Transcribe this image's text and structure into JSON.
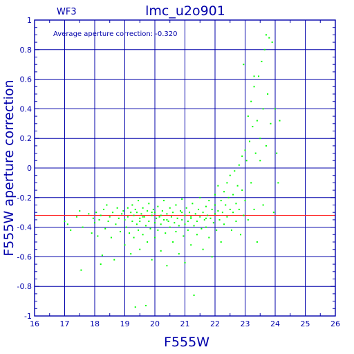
{
  "chart_data": {
    "type": "scatter",
    "title": "lmc_u2o901",
    "chip_label": "WF3",
    "annotation": "Average aperture correction: -0.320",
    "xlabel": "F555W",
    "ylabel": "F555W aperture correction",
    "xlim": [
      16,
      26
    ],
    "ylim": [
      -1,
      1
    ],
    "x_ticks": [
      "16",
      "17",
      "18",
      "19",
      "20",
      "21",
      "22",
      "23",
      "24",
      "25",
      "26"
    ],
    "y_ticks": [
      "-1",
      "-0.8",
      "-0.6",
      "-0.4",
      "-0.2",
      "0",
      "0.2",
      "0.4",
      "0.6",
      "0.8",
      "1"
    ],
    "x_minor_step": 0.5,
    "y_minor_step": 0.05,
    "grid": true,
    "reference_line": {
      "y": -0.32,
      "color": "#ff2020"
    },
    "point_color": "#00ff00",
    "axis_color": "#0000aa",
    "points": [
      [
        17.0,
        -0.36
      ],
      [
        17.1,
        -0.38
      ],
      [
        17.2,
        -0.42
      ],
      [
        17.4,
        -0.33
      ],
      [
        17.5,
        -0.29
      ],
      [
        17.55,
        -0.69
      ],
      [
        17.6,
        -0.4
      ],
      [
        17.8,
        -0.31
      ],
      [
        17.9,
        -0.44
      ],
      [
        17.95,
        -0.34
      ],
      [
        18.0,
        -0.37
      ],
      [
        18.05,
        -0.3
      ],
      [
        18.1,
        -0.46
      ],
      [
        18.15,
        -0.35
      ],
      [
        18.2,
        -0.32
      ],
      [
        18.2,
        -0.65
      ],
      [
        18.25,
        -0.59
      ],
      [
        18.3,
        -0.28
      ],
      [
        18.35,
        -0.41
      ],
      [
        18.4,
        -0.25
      ],
      [
        18.45,
        -0.36
      ],
      [
        18.5,
        -0.33
      ],
      [
        18.55,
        -0.47
      ],
      [
        18.6,
        -0.3
      ],
      [
        18.65,
        -0.62
      ],
      [
        18.7,
        -0.38
      ],
      [
        18.75,
        -0.27
      ],
      [
        18.8,
        -0.34
      ],
      [
        18.85,
        -0.43
      ],
      [
        18.9,
        -0.31
      ],
      [
        18.95,
        -0.29
      ],
      [
        19.0,
        -0.35
      ],
      [
        19.0,
        -0.52
      ],
      [
        19.05,
        -0.4
      ],
      [
        19.1,
        -0.27
      ],
      [
        19.1,
        -0.33
      ],
      [
        19.15,
        -0.44
      ],
      [
        19.2,
        -0.3
      ],
      [
        19.2,
        -0.58
      ],
      [
        19.25,
        -0.36
      ],
      [
        19.25,
        -0.25
      ],
      [
        19.3,
        -0.32
      ],
      [
        19.3,
        -0.47
      ],
      [
        19.35,
        -0.28
      ],
      [
        19.35,
        -0.94
      ],
      [
        19.4,
        -0.38
      ],
      [
        19.4,
        -0.3
      ],
      [
        19.45,
        -0.42
      ],
      [
        19.45,
        -0.22
      ],
      [
        19.5,
        -0.34
      ],
      [
        19.5,
        -0.55
      ],
      [
        19.5,
        -0.36
      ],
      [
        19.55,
        -0.31
      ],
      [
        19.6,
        -0.27
      ],
      [
        19.6,
        -0.45
      ],
      [
        19.65,
        -0.33
      ],
      [
        19.7,
        -0.39
      ],
      [
        19.7,
        -0.93
      ],
      [
        19.75,
        -0.29
      ],
      [
        19.75,
        -0.5
      ],
      [
        19.8,
        -0.36
      ],
      [
        19.8,
        -0.24
      ],
      [
        19.85,
        -0.41
      ],
      [
        19.9,
        -0.32
      ],
      [
        19.9,
        -0.62
      ],
      [
        19.95,
        -0.28
      ],
      [
        20.0,
        -0.37
      ],
      [
        20.0,
        -0.3
      ],
      [
        20.0,
        -0.47
      ],
      [
        20.05,
        -0.34
      ],
      [
        20.1,
        -0.26
      ],
      [
        20.1,
        -0.42
      ],
      [
        20.15,
        -0.33
      ],
      [
        20.2,
        -0.38
      ],
      [
        20.2,
        -0.56
      ],
      [
        20.25,
        -0.29
      ],
      [
        20.3,
        -0.35
      ],
      [
        20.3,
        -0.22
      ],
      [
        20.35,
        -0.44
      ],
      [
        20.4,
        -0.31
      ],
      [
        20.4,
        -0.66
      ],
      [
        20.45,
        -0.36
      ],
      [
        20.5,
        -0.27
      ],
      [
        20.5,
        -0.4
      ],
      [
        20.55,
        -0.33
      ],
      [
        20.6,
        -0.5
      ],
      [
        20.6,
        -0.3
      ],
      [
        20.65,
        -0.37
      ],
      [
        20.7,
        -0.25
      ],
      [
        20.7,
        -0.43
      ],
      [
        20.75,
        -0.34
      ],
      [
        20.8,
        -0.39
      ],
      [
        20.8,
        -0.58
      ],
      [
        20.85,
        -0.29
      ],
      [
        20.9,
        -0.35
      ],
      [
        20.9,
        -0.21
      ],
      [
        20.95,
        -0.46
      ],
      [
        21.0,
        -0.32
      ],
      [
        21.0,
        -0.38
      ],
      [
        21.0,
        -0.64
      ],
      [
        21.05,
        -0.27
      ],
      [
        21.1,
        -0.36
      ],
      [
        21.1,
        -0.42
      ],
      [
        21.15,
        -0.3
      ],
      [
        21.2,
        -0.34
      ],
      [
        21.2,
        -0.52
      ],
      [
        21.25,
        -0.24
      ],
      [
        21.3,
        -0.39
      ],
      [
        21.3,
        -0.86
      ],
      [
        21.35,
        -0.31
      ],
      [
        21.4,
        -0.36
      ],
      [
        21.4,
        -0.45
      ],
      [
        21.45,
        -0.28
      ],
      [
        21.5,
        -0.33
      ],
      [
        21.5,
        -0.2
      ],
      [
        21.55,
        -0.41
      ],
      [
        21.6,
        -0.3
      ],
      [
        21.6,
        -0.55
      ],
      [
        21.65,
        -0.35
      ],
      [
        21.7,
        -0.26
      ],
      [
        21.7,
        -0.4
      ],
      [
        21.75,
        -0.32
      ],
      [
        21.8,
        -0.22
      ],
      [
        21.8,
        -0.47
      ],
      [
        21.85,
        -0.34
      ],
      [
        21.9,
        -0.28
      ],
      [
        21.9,
        -0.6
      ],
      [
        21.95,
        -0.37
      ],
      [
        22.0,
        -0.25
      ],
      [
        22.0,
        -0.31
      ],
      [
        22.0,
        -0.18
      ],
      [
        22.05,
        -0.42
      ],
      [
        22.1,
        -0.29
      ],
      [
        22.1,
        -0.12
      ],
      [
        22.15,
        -0.35
      ],
      [
        22.2,
        -0.22
      ],
      [
        22.2,
        -0.5
      ],
      [
        22.25,
        -0.3
      ],
      [
        22.3,
        -0.16
      ],
      [
        22.3,
        -0.38
      ],
      [
        22.35,
        -0.25
      ],
      [
        22.4,
        -0.1
      ],
      [
        22.4,
        -0.33
      ],
      [
        22.45,
        -0.2
      ],
      [
        22.5,
        -0.28
      ],
      [
        22.5,
        -0.05
      ],
      [
        22.55,
        -0.42
      ],
      [
        22.6,
        -0.18
      ],
      [
        22.6,
        -0.3
      ],
      [
        22.65,
        -0.02
      ],
      [
        22.7,
        -0.24
      ],
      [
        22.7,
        -0.36
      ],
      [
        22.75,
        -0.12
      ],
      [
        22.8,
        0.02
      ],
      [
        22.8,
        -0.28
      ],
      [
        22.85,
        -0.45
      ],
      [
        22.9,
        0.08
      ],
      [
        22.9,
        -0.15
      ],
      [
        22.95,
        -0.32
      ],
      [
        23.0,
        0.12
      ],
      [
        23.0,
        -0.22
      ],
      [
        23.05,
        0.05
      ],
      [
        23.1,
        0.35
      ],
      [
        23.1,
        -0.35
      ],
      [
        23.15,
        0.18
      ],
      [
        23.2,
        -0.1
      ],
      [
        23.2,
        0.45
      ],
      [
        23.25,
        0.28
      ],
      [
        23.3,
        -0.28
      ],
      [
        23.3,
        0.55
      ],
      [
        23.35,
        0.1
      ],
      [
        23.4,
        0.32
      ],
      [
        23.4,
        -0.5
      ],
      [
        23.45,
        0.62
      ],
      [
        23.5,
        0.2
      ],
      [
        23.5,
        0.05
      ],
      [
        23.55,
        0.72
      ],
      [
        23.6,
        0.4
      ],
      [
        23.6,
        -0.25
      ],
      [
        23.65,
        0.8
      ],
      [
        23.7,
        0.15
      ],
      [
        23.7,
        0.9
      ],
      [
        23.75,
        0.5
      ],
      [
        23.8,
        0.88
      ],
      [
        23.85,
        0.3
      ],
      [
        23.9,
        0.85
      ],
      [
        23.95,
        -0.3
      ],
      [
        24.0,
        0.4
      ],
      [
        24.05,
        0.1
      ],
      [
        24.1,
        -0.1
      ],
      [
        24.15,
        0.32
      ],
      [
        22.95,
        0.7
      ],
      [
        23.3,
        0.62
      ],
      [
        19.6,
        -0.33
      ],
      [
        20.4,
        -0.35
      ],
      [
        21.2,
        -0.33
      ],
      [
        20.9,
        -0.3
      ],
      [
        19.9,
        -0.3
      ],
      [
        21.7,
        -0.34
      ],
      [
        20.2,
        -0.32
      ]
    ]
  }
}
